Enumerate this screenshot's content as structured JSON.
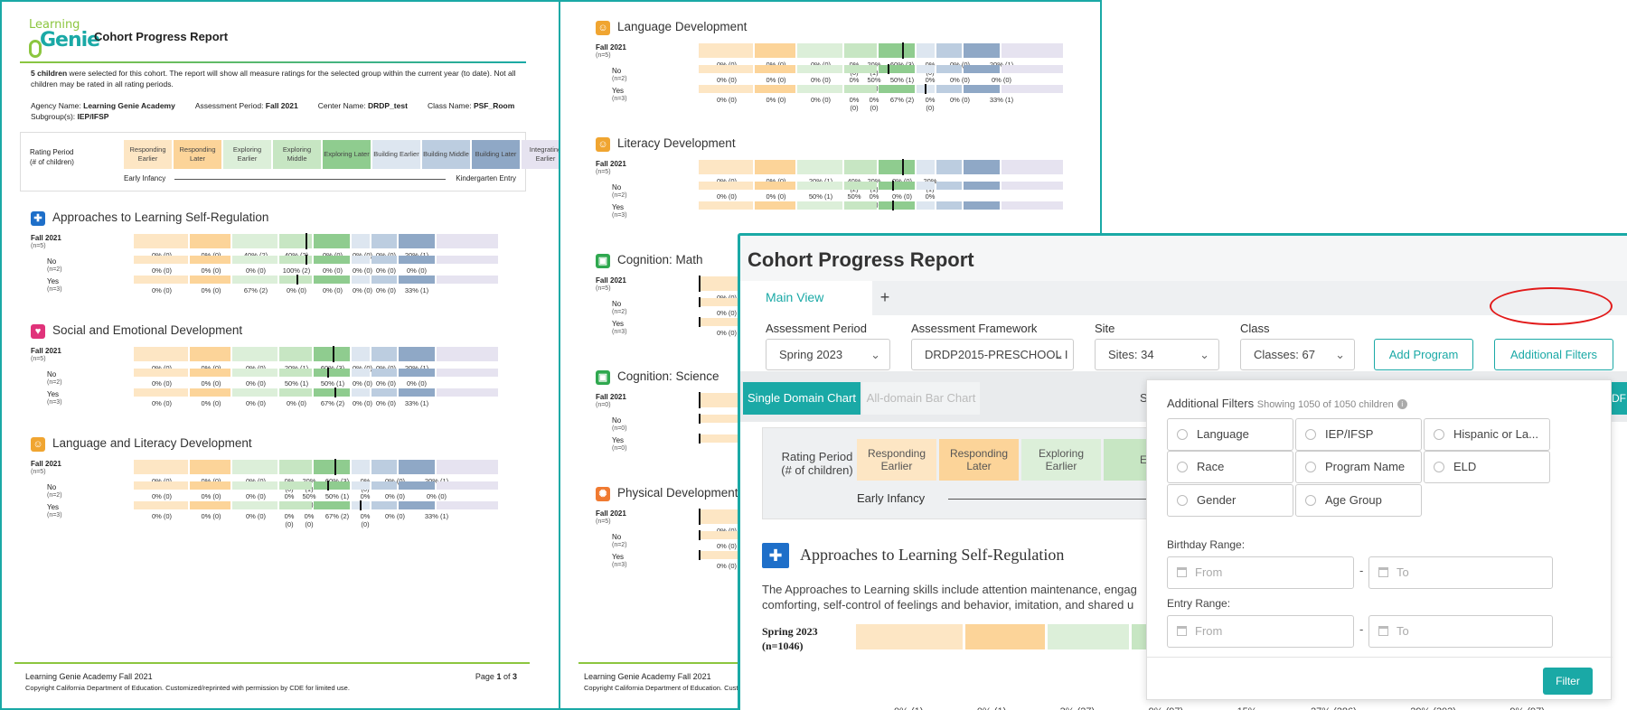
{
  "report": {
    "logo_top": "Learning",
    "logo_bottom": "Genie",
    "title": "Cohort Progress Report",
    "intro_bold": "5 children",
    "intro_rest": " were selected for this cohort. The report will show all measure ratings for the selected group within the current year (to date). Not all children may be rated in all rating periods.",
    "agency_label": "Agency Name: ",
    "agency": "Learning Genie Academy",
    "period_label": "Assessment Period: ",
    "period": "Fall 2021",
    "center_label": "Center Name: ",
    "center": "DRDP_test",
    "class_label": "Class Name: ",
    "class": "PSF_Room",
    "subgroup_label": "Subgroup(s): ",
    "subgroup": "IEP/IFSP",
    "rp_label1": "Rating Period",
    "rp_label2": "(# of children)",
    "levels": [
      "Responding Earlier",
      "Responding Later",
      "Exploring Earlier",
      "Exploring Middle",
      "Exploring Later",
      "Building Earlier",
      "Building Middle",
      "Building Later",
      "Integrating Earlier"
    ],
    "level_colors": [
      "#fde6c4",
      "#fcd499",
      "#dcefd9",
      "#c7e6c3",
      "#8fcc8f",
      "#dde6f0",
      "#bccde0",
      "#8fa8c6",
      "#e6e3f0"
    ],
    "early": "Early Infancy",
    "kinder": "Kindergarten Entry",
    "footer_left": "Learning Genie Academy Fall 2021",
    "footer_copy": "Copyright California Department of Education. Customized/reprinted with permission by CDE for limited use.",
    "page_pre": "Page ",
    "page_num": "1",
    "page_mid": " of ",
    "page_total": "3"
  },
  "page1_domains": [
    {
      "icon": "✚",
      "color": "#1e6fc9",
      "name": "Approaches to Learning Self-Regulation",
      "rows": [
        {
          "label": "Fall 2021",
          "n": "(n=5)",
          "vals": [
            "0% (0)",
            "0% (0)",
            "40% (2)",
            "40% (2)",
            "0% (0)",
            "0% (0)",
            "0% (0)",
            "20% (1)"
          ]
        },
        {
          "label": "No",
          "n": "(n=2)",
          "vals": [
            "0% (0)",
            "0% (0)",
            "0% (0)",
            "100% (2)",
            "0% (0)",
            "0% (0)",
            "0% (0)",
            "0% (0)"
          ]
        },
        {
          "label": "Yes",
          "n": "(n=3)",
          "vals": [
            "0% (0)",
            "0% (0)",
            "67% (2)",
            "0% (0)",
            "0% (0)",
            "0% (0)",
            "0% (0)",
            "33% (1)"
          ]
        }
      ]
    },
    {
      "icon": "♥",
      "color": "#e0337a",
      "name": "Social and Emotional Development",
      "rows": [
        {
          "label": "Fall 2021",
          "n": "(n=5)",
          "vals": [
            "0% (0)",
            "0% (0)",
            "0% (0)",
            "20% (1)",
            "60% (3)",
            "0% (0)",
            "0% (0)",
            "20% (1)"
          ]
        },
        {
          "label": "No",
          "n": "(n=2)",
          "vals": [
            "0% (0)",
            "0% (0)",
            "0% (0)",
            "50% (1)",
            "50% (1)",
            "0% (0)",
            "0% (0)",
            "0% (0)"
          ]
        },
        {
          "label": "Yes",
          "n": "(n=3)",
          "vals": [
            "0% (0)",
            "0% (0)",
            "0% (0)",
            "0% (0)",
            "67% (2)",
            "0% (0)",
            "0% (0)",
            "33% (1)"
          ]
        }
      ]
    },
    {
      "icon": "☺",
      "color": "#f0a531",
      "name": "Language and Literacy Development",
      "rows": [
        {
          "label": "Fall 2021",
          "n": "(n=5)",
          "vals": [
            "0% (0)",
            "0% (0)",
            "0% (0)",
            "0% (0)",
            "20% (1)",
            "60% (3)",
            "0% (0)",
            "0% (0)",
            "20% (1)"
          ]
        },
        {
          "label": "No",
          "n": "(n=2)",
          "vals": [
            "0% (0)",
            "0% (0)",
            "0% (0)",
            "0% (0)",
            "50% (1)",
            "50% (1)",
            "0% (0)",
            "0% (0)",
            "0% (0)"
          ]
        },
        {
          "label": "Yes",
          "n": "(n=3)",
          "vals": [
            "0% (0)",
            "0% (0)",
            "0% (0)",
            "0% (0)",
            "0% (0)",
            "67% (2)",
            "0% (0)",
            "0% (0)",
            "33% (1)"
          ]
        }
      ]
    }
  ],
  "page2_domains": [
    {
      "icon": "☺",
      "color": "#f0a531",
      "name": "Language Development",
      "rows": [
        {
          "label": "Fall 2021",
          "n": "(n=5)",
          "vals": [
            "0% (0)",
            "0% (0)",
            "0% (0)",
            "0% (0)",
            "20% (1)",
            "60% (3)",
            "0% (0)",
            "0% (0)",
            "20% (1)"
          ]
        },
        {
          "label": "No",
          "n": "(n=2)",
          "vals": [
            "0% (0)",
            "0% (0)",
            "0% (0)",
            "0% (0)",
            "50% (1)",
            "50% (1)",
            "0% (0)",
            "0% (0)",
            "0% (0)"
          ]
        },
        {
          "label": "Yes",
          "n": "(n=3)",
          "vals": [
            "0% (0)",
            "0% (0)",
            "0% (0)",
            "0% (0)",
            "0% (0)",
            "67% (2)",
            "0% (0)",
            "0% (0)",
            "33% (1)"
          ]
        }
      ]
    },
    {
      "icon": "☺",
      "color": "#f0a531",
      "name": "Literacy Development",
      "rows": [
        {
          "label": "Fall 2021",
          "n": "(n=5)",
          "vals": [
            "0% (0)",
            "0% (0)",
            "20% (1)",
            "40% (2)",
            "20% (1)",
            "0% (0)",
            "20% (1)"
          ]
        },
        {
          "label": "No",
          "n": "(n=2)",
          "vals": [
            "0% (0)",
            "0% (0)",
            "50% (1)",
            "50% (1)",
            "0% (0)",
            "0% (0)",
            "0% (0)"
          ]
        },
        {
          "label": "Yes",
          "n": "(n=3)",
          "vals": []
        }
      ]
    },
    {
      "icon": "▣",
      "color": "#2fa84f",
      "name": "Cognition: Math",
      "rows": [
        {
          "label": "Fall 2021",
          "n": "(n=5)",
          "vals": [
            "0% (0)"
          ]
        },
        {
          "label": "No",
          "n": "(n=2)",
          "vals": [
            "0% (0)"
          ]
        },
        {
          "label": "Yes",
          "n": "(n=3)",
          "vals": [
            "0% (0)"
          ]
        }
      ]
    },
    {
      "icon": "▣",
      "color": "#2fa84f",
      "name": "Cognition: Science",
      "rows": [
        {
          "label": "Fall 2021",
          "n": "(n=0)",
          "vals": []
        },
        {
          "label": "No",
          "n": "(n=0)",
          "vals": []
        },
        {
          "label": "Yes",
          "n": "(n=0)",
          "vals": []
        }
      ]
    },
    {
      "icon": "✺",
      "color": "#f07a31",
      "name": "Physical Development",
      "rows": [
        {
          "label": "Fall 2021",
          "n": "(n=5)",
          "vals": [
            "0% (0)"
          ]
        },
        {
          "label": "No",
          "n": "(n=2)",
          "vals": [
            "0% (0)"
          ]
        },
        {
          "label": "Yes",
          "n": "(n=3)",
          "vals": [
            "0% (0)"
          ]
        }
      ]
    }
  ],
  "page2_footer_left": "Learning Genie Academy Fall 2021",
  "page2_footer_copy": "Copyright California Department of Education. Customized/reprint",
  "app": {
    "title": "Cohort Progress Report",
    "tab_main": "Main View",
    "tab_add": "+",
    "assessment_period_label": "Assessment Period",
    "assessment_period": "Spring 2023",
    "framework_label": "Assessment Framework",
    "framework": "DRDP2015-PRESCHOOL I",
    "site_label": "Site",
    "site": "Sites: 34",
    "class_label": "Class",
    "class": "Classes: 67",
    "add_program": "Add Program",
    "additional_filters": "Additional Filters",
    "single_domain": "Single Domain Chart",
    "all_domain": "All-domain Bar Chart",
    "sh": "Sh",
    "df": "DF",
    "rp_label": "Rating Period (# of children)",
    "rp_cells": [
      "Responding Earlier",
      "Responding Later",
      "Exploring Earlier",
      "E"
    ],
    "early": "Early Infancy",
    "domain_title": "Approaches to Learning Self-Regulation",
    "desc1": "The Approaches to Learning skills include attention maintenance, engag",
    "desc2": "comforting, self-control of feelings and behavior, imitation, and shared u",
    "spring": "Spring 2023",
    "spring_n": "(n=1046)",
    "bottom_vals": [
      "0% (1)",
      "0% (1)",
      "3% (27)",
      "9% (97)",
      "15%",
      "27% (286)",
      "29% (303)",
      "9% (97)"
    ]
  },
  "filters": {
    "title": "Additional Filters",
    "showing": "Showing 1050 of 1050 children",
    "options": [
      "Language",
      "IEP/IFSP",
      "Hispanic or La...",
      "Race",
      "Program Name",
      "ELD",
      "Gender",
      "Age Group"
    ],
    "birthday": "Birthday Range:",
    "entry": "Entry Range:",
    "from": "From",
    "to": "To",
    "button": "Filter"
  }
}
